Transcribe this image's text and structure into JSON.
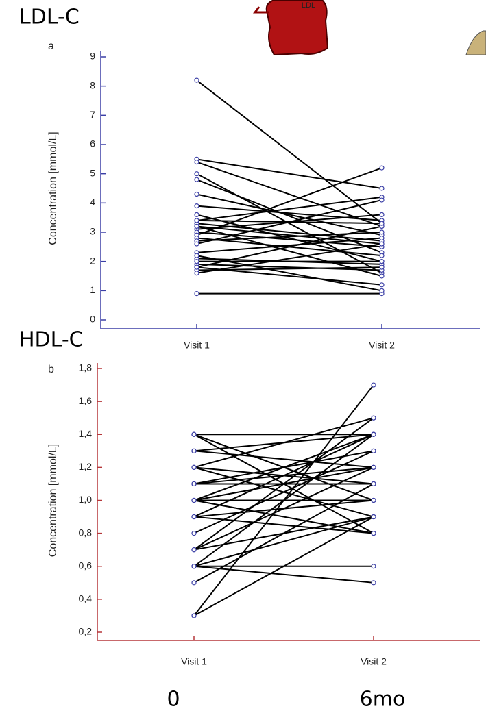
{
  "chart_data": [
    {
      "type": "slope",
      "title": "LDL-C",
      "panel_label": "a",
      "image_text": "LDL",
      "ylabel": "Concentration [mmol/L]",
      "categories": [
        "Visit 1",
        "Visit 2"
      ],
      "ylim": [
        0,
        9
      ],
      "yticks": [
        0,
        1,
        2,
        3,
        4,
        5,
        6,
        7,
        8,
        9
      ],
      "axis_color": "#3b3fa6",
      "marker_color": "#3b3fa6",
      "line_color": "#000000",
      "pairs": [
        [
          8.2,
          3.3
        ],
        [
          5.5,
          4.5
        ],
        [
          5.4,
          3.2
        ],
        [
          5.0,
          1.6
        ],
        [
          4.8,
          2.3
        ],
        [
          4.3,
          2.9
        ],
        [
          3.9,
          3.4
        ],
        [
          3.6,
          2.0
        ],
        [
          3.4,
          4.2
        ],
        [
          3.3,
          2.7
        ],
        [
          3.2,
          1.5
        ],
        [
          3.1,
          3.6
        ],
        [
          3.0,
          2.5
        ],
        [
          2.9,
          5.2
        ],
        [
          2.8,
          2.2
        ],
        [
          2.7,
          3.0
        ],
        [
          2.6,
          4.1
        ],
        [
          2.3,
          2.8
        ],
        [
          2.1,
          1.9
        ],
        [
          1.9,
          1.7
        ],
        [
          1.8,
          1.2
        ],
        [
          1.7,
          1.8
        ],
        [
          1.6,
          2.6
        ],
        [
          0.9,
          0.9
        ],
        [
          1.8,
          3.2
        ],
        [
          2.2,
          1.0
        ],
        [
          3.4,
          3.3
        ],
        [
          3.2,
          2.6
        ],
        [
          2.0,
          2.0
        ]
      ]
    },
    {
      "type": "slope",
      "title": "HDL-C",
      "panel_label": "b",
      "ylabel": "Concentration [mmol/L]",
      "categories": [
        "Visit 1",
        "Visit 2"
      ],
      "x_annotations": [
        "0",
        "6mo"
      ],
      "ylim": [
        0.2,
        1.8
      ],
      "yticks": [
        {
          "value": 0.2,
          "label": "0,2"
        },
        {
          "value": 0.4,
          "label": "0,4"
        },
        {
          "value": 0.6,
          "label": "0,6"
        },
        {
          "value": 0.8,
          "label": "0,8"
        },
        {
          "value": 1.0,
          "label": "1,0"
        },
        {
          "value": 1.2,
          "label": "1,2"
        },
        {
          "value": 1.4,
          "label": "1,4"
        },
        {
          "value": 1.6,
          "label": "1,6"
        },
        {
          "value": 1.8,
          "label": "1,8"
        }
      ],
      "axis_color": "#b5373a",
      "marker_color": "#3b3fa6",
      "line_color": "#000000",
      "pairs": [
        [
          1.4,
          1.4
        ],
        [
          1.4,
          1.0
        ],
        [
          1.3,
          1.4
        ],
        [
          1.3,
          1.2
        ],
        [
          1.2,
          1.5
        ],
        [
          1.2,
          1.1
        ],
        [
          1.1,
          1.1
        ],
        [
          1.1,
          1.3
        ],
        [
          1.0,
          1.0
        ],
        [
          1.0,
          0.8
        ],
        [
          1.0,
          1.2
        ],
        [
          0.9,
          1.4
        ],
        [
          0.9,
          0.8
        ],
        [
          0.9,
          1.0
        ],
        [
          0.8,
          1.3
        ],
        [
          0.7,
          1.5
        ],
        [
          0.7,
          1.2
        ],
        [
          0.7,
          0.9
        ],
        [
          0.6,
          1.4
        ],
        [
          0.6,
          0.6
        ],
        [
          0.6,
          0.5
        ],
        [
          0.6,
          0.9
        ],
        [
          0.5,
          1.1
        ],
        [
          0.3,
          1.7
        ],
        [
          0.3,
          0.9
        ],
        [
          1.2,
          0.9
        ],
        [
          1.1,
          1.2
        ],
        [
          1.0,
          1.4
        ],
        [
          1.4,
          0.8
        ]
      ]
    }
  ]
}
